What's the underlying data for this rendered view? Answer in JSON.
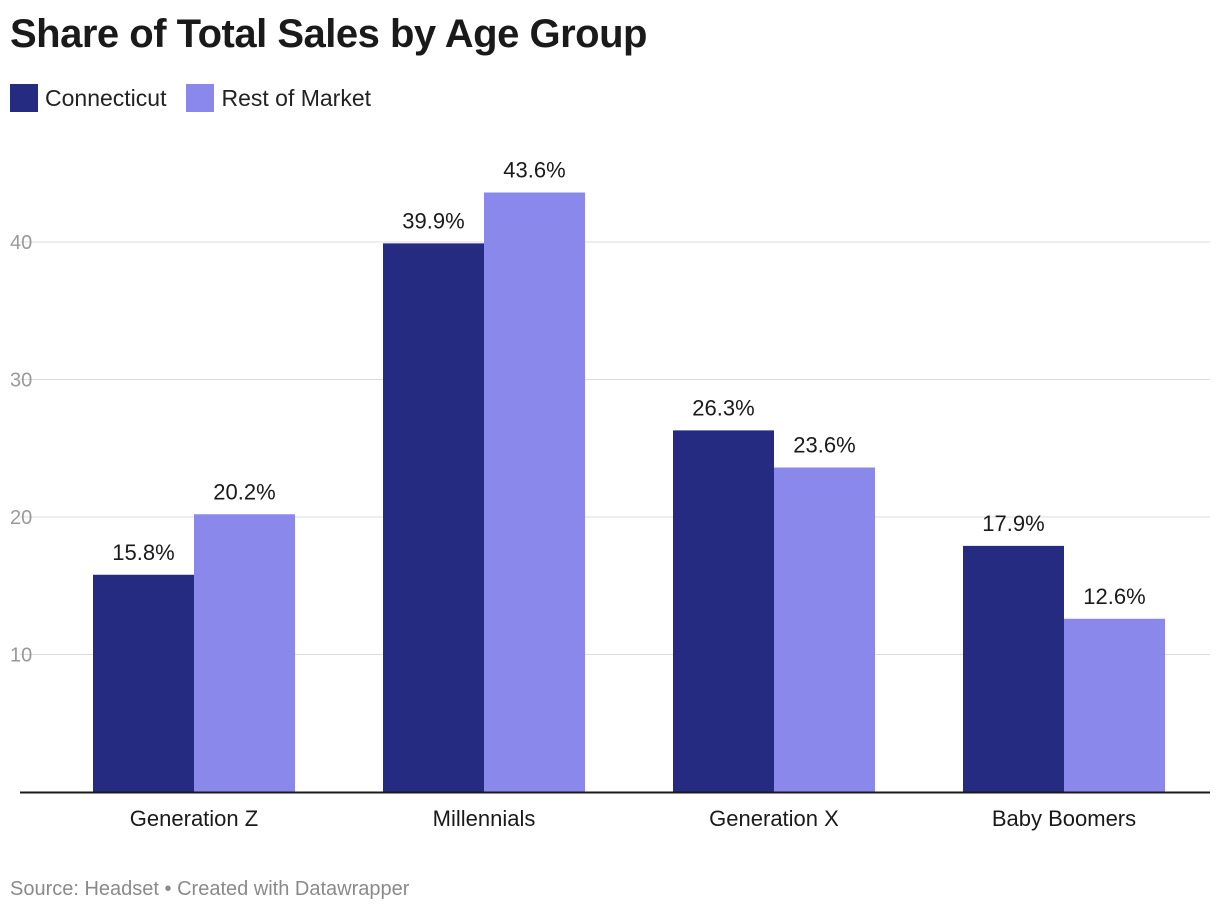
{
  "chart_data": {
    "type": "bar",
    "title": "Share of Total Sales by Age Group",
    "categories": [
      "Generation Z",
      "Millennials",
      "Generation X",
      "Baby Boomers"
    ],
    "series": [
      {
        "name": "Connecticut",
        "color": "#242b80",
        "values": [
          15.8,
          39.9,
          26.3,
          17.9
        ],
        "labels": [
          "15.8%",
          "39.9%",
          "26.3%",
          "17.9%"
        ]
      },
      {
        "name": "Rest of Market",
        "color": "#8b88ec",
        "values": [
          20.2,
          43.6,
          23.6,
          12.6
        ],
        "labels": [
          "20.2%",
          "43.6%",
          "23.6%",
          "12.6%"
        ]
      }
    ],
    "yticks": [
      10,
      20,
      30,
      40
    ],
    "ylim": [
      0,
      45
    ],
    "grid": true,
    "legend": "top-left",
    "xlabel": "",
    "ylabel": ""
  },
  "footer": {
    "source": "Source: Headset • Created with Datawrapper"
  }
}
